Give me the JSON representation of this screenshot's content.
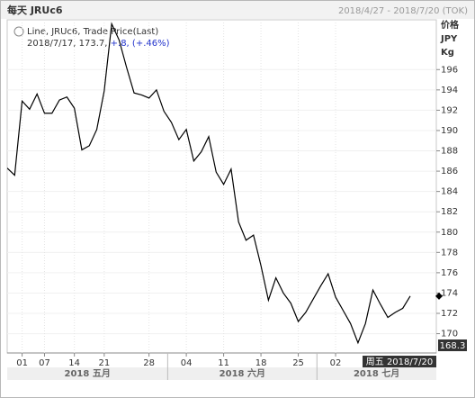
{
  "header": {
    "title": "每天 JRUc6",
    "range": "2018/4/27 - 2018/7/20 (TOK)"
  },
  "chart_data": {
    "type": "line",
    "legend": {
      "name": "Line, JRUc6, Trade Price(Last)",
      "detail": "2018/7/17, 173.7,",
      "change": "+.8, (+.46%)"
    },
    "y_units": [
      "价格",
      "JPY",
      "Kg"
    ],
    "categories": [
      null,
      null,
      "01",
      null,
      null,
      "07",
      null,
      null,
      null,
      "14",
      null,
      null,
      null,
      "21",
      null,
      null,
      null,
      null,
      null,
      "28",
      null,
      null,
      null,
      null,
      "04",
      null,
      null,
      null,
      null,
      "11",
      null,
      null,
      null,
      null,
      "18",
      null,
      null,
      null,
      null,
      "25",
      null,
      null,
      null,
      null,
      "02",
      null,
      null,
      null,
      null,
      null,
      null,
      null,
      null,
      null,
      null
    ],
    "months": [
      "2018 五月",
      "2018 六月",
      "2018 七月"
    ],
    "series": [
      {
        "name": "JRUc6",
        "color": "#000000",
        "values": [
          186.3,
          185.6,
          192.9,
          192.1,
          193.6,
          191.7,
          191.7,
          193.0,
          193.3,
          192.2,
          188.1,
          188.5,
          190.1,
          193.9,
          200.5,
          198.9,
          196.2,
          193.7,
          193.5,
          193.2,
          194.0,
          191.9,
          190.8,
          189.1,
          190.1,
          187.0,
          187.9,
          189.4,
          185.9,
          184.7,
          186.2,
          181.0,
          179.2,
          179.7,
          176.7,
          173.3,
          175.5,
          174.0,
          173.0,
          171.2,
          172.1,
          173.4,
          174.7,
          175.9,
          173.6,
          172.3,
          171.0,
          169.1,
          171.0,
          174.3,
          172.9,
          171.6,
          172.1,
          172.5,
          173.7
        ]
      }
    ],
    "ylim": [
      168.1,
      200.9
    ],
    "yticks": [
      170,
      172,
      174,
      176,
      178,
      180,
      182,
      184,
      186,
      188,
      190,
      192,
      194,
      196
    ],
    "low_label": "168.3",
    "cursor_date": "周五 2018/7/20",
    "grid": true
  }
}
